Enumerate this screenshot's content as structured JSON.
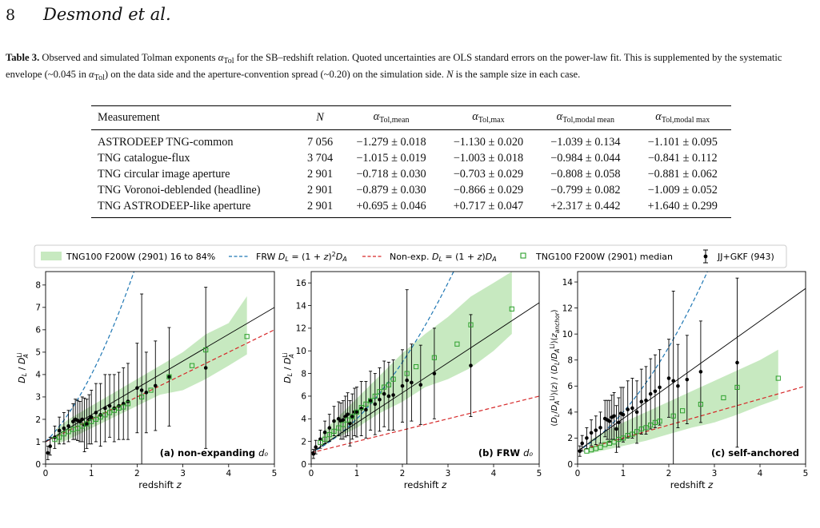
{
  "header": {
    "page_number": "8",
    "authors": "Desmond et al."
  },
  "caption": {
    "label": "Table 3.",
    "text_1": " Observed and simulated Tolman exponents ",
    "alpha_sym": "α",
    "alpha_sub": "Tol",
    "text_2": " for the SB–redshift relation. Quoted uncertainties are OLS standard errors on the power-law fit. This is supplemented by the systematic envelope (~0.045 in ",
    "text_3": ") on the data side and the aperture-convention spread (~0.20) on the simulation side. ",
    "n_sym": "N",
    "text_4": " is the sample size in each case."
  },
  "table": {
    "headers": {
      "measurement": "Measurement",
      "n": "N",
      "alpha": "α",
      "mean_sub": "Tol,mean",
      "max_sub": "Tol,max",
      "modal_mean_sub": "Tol,modal mean",
      "modal_max_sub": "Tol,modal max"
    },
    "rows": [
      {
        "name": "ASTRODEEP TNG-common",
        "n": "7 056",
        "mean": "−1.279 ± 0.018",
        "max": "−1.130 ± 0.020",
        "modal_mean": "−1.039 ± 0.134",
        "modal_max": "−1.101 ± 0.095"
      },
      {
        "name": "TNG catalogue-flux",
        "n": "3 704",
        "mean": "−1.015 ± 0.019",
        "max": "−1.003 ± 0.018",
        "modal_mean": "−0.984 ± 0.044",
        "modal_max": "−0.841 ± 0.112"
      },
      {
        "name": "TNG circular image aperture",
        "n": "2 901",
        "mean": "−0.718 ± 0.030",
        "max": "−0.703 ± 0.029",
        "modal_mean": "−0.808 ± 0.058",
        "modal_max": "−0.881 ± 0.062"
      },
      {
        "name": "TNG Voronoi-deblended (headline)",
        "n": "2 901",
        "mean": "−0.879 ± 0.030",
        "max": "−0.866 ± 0.029",
        "modal_mean": "−0.799 ± 0.082",
        "modal_max": "−1.009 ± 0.052"
      },
      {
        "name": "TNG ASTRODEEP-like aperture",
        "n": "2 901",
        "mean": "+0.695 ± 0.046",
        "max": "+0.717 ± 0.047",
        "modal_mean": "+2.317 ± 0.442",
        "modal_max": "+1.640 ± 0.299"
      }
    ]
  },
  "figure_legend": {
    "band": "TNG100 F200W (2901) 16 to 84%",
    "frw": "FRW D_L = (1 + z)^2 D_A",
    "nonexp": "Non-exp.  D_L = (1 + z)D_A",
    "median": "TNG100 F200W (2901) median",
    "obs": "JJ+GKF (943)"
  },
  "colors": {
    "band": "#c7e9c0",
    "median": "#2ca02c",
    "frw": "#1f77b4",
    "nonexp": "#d62728",
    "obs": "#000000",
    "fit": "#000000"
  },
  "chart_data": [
    {
      "type": "scatter",
      "panel_label": "(a) non-expanding d₀",
      "xlabel": "redshift z",
      "ylabel": "D_L / D_A^Li",
      "xlim": [
        0,
        5
      ],
      "ylim": [
        0,
        8.6
      ],
      "xticks": [
        0,
        1,
        2,
        3,
        4,
        5
      ],
      "yticks": [
        0,
        1,
        2,
        3,
        4,
        5,
        6,
        7,
        8
      ],
      "band": {
        "x": [
          0.25,
          0.5,
          1.0,
          1.5,
          2.0,
          2.5,
          3.0,
          3.5,
          4.0,
          4.4
        ],
        "lo": [
          0.9,
          1.1,
          1.6,
          2.1,
          2.6,
          3.1,
          3.3,
          3.8,
          4.4,
          4.9
        ],
        "hi": [
          1.6,
          2.0,
          2.6,
          3.2,
          3.8,
          4.4,
          5.0,
          5.8,
          6.3,
          7.5
        ]
      },
      "median": {
        "x": [
          0.2,
          0.3,
          0.4,
          0.5,
          0.6,
          0.7,
          0.8,
          0.9,
          1.0,
          1.1,
          1.2,
          1.3,
          1.4,
          1.5,
          1.6,
          1.7,
          1.8,
          2.1,
          2.3,
          2.7,
          3.2,
          3.5,
          4.4
        ],
        "y": [
          1.1,
          1.2,
          1.35,
          1.45,
          1.55,
          1.6,
          1.7,
          1.8,
          1.9,
          2.0,
          2.1,
          2.2,
          2.3,
          2.4,
          2.5,
          2.55,
          2.7,
          3.0,
          3.3,
          3.9,
          4.4,
          5.1,
          5.7
        ]
      },
      "obs": {
        "x": [
          0.05,
          0.1,
          0.2,
          0.3,
          0.4,
          0.5,
          0.6,
          0.65,
          0.7,
          0.75,
          0.8,
          0.85,
          0.9,
          0.95,
          1.0,
          1.1,
          1.2,
          1.3,
          1.4,
          1.5,
          1.6,
          1.7,
          1.8,
          2.0,
          2.1,
          2.2,
          2.4,
          2.7,
          3.5
        ],
        "y": [
          0.5,
          0.8,
          1.2,
          1.5,
          1.6,
          1.7,
          1.9,
          2.0,
          1.95,
          1.9,
          2.0,
          1.75,
          1.8,
          2.0,
          2.1,
          2.3,
          2.2,
          2.5,
          2.6,
          2.5,
          2.6,
          2.7,
          2.8,
          3.4,
          3.3,
          3.2,
          3.5,
          3.9,
          4.3
        ],
        "err": [
          0.3,
          0.4,
          0.5,
          0.6,
          0.7,
          0.7,
          0.8,
          0.9,
          0.9,
          0.9,
          1.0,
          1.2,
          1.1,
          1.1,
          1.2,
          1.3,
          1.4,
          1.5,
          1.4,
          1.5,
          1.5,
          1.6,
          1.7,
          2.0,
          4.3,
          1.8,
          2.0,
          2.2,
          3.6
        ]
      },
      "fit_slope": 1.2,
      "fit_intercept": 1.0,
      "frw": "(1+z)^2",
      "nonexp": "1+z"
    },
    {
      "type": "scatter",
      "panel_label": "(b) FRW d₀",
      "xlabel": "redshift z",
      "ylabel": "D_L / D_A^Li",
      "xlim": [
        0,
        5
      ],
      "ylim": [
        0,
        17
      ],
      "xticks": [
        0,
        1,
        2,
        3,
        4,
        5
      ],
      "yticks": [
        0,
        2,
        4,
        6,
        8,
        10,
        12,
        14,
        16
      ],
      "band": {
        "x": [
          0.25,
          0.5,
          1.0,
          1.5,
          2.0,
          2.5,
          3.0,
          3.5,
          4.0,
          4.4
        ],
        "lo": [
          1.5,
          2.2,
          3.2,
          4.5,
          5.5,
          6.8,
          7.5,
          8.5,
          10.0,
          11.5
        ],
        "hi": [
          2.8,
          3.8,
          5.8,
          7.8,
          9.8,
          11.5,
          13.0,
          14.8,
          16.0,
          17.0
        ]
      },
      "median": {
        "x": [
          0.2,
          0.3,
          0.4,
          0.5,
          0.6,
          0.7,
          0.8,
          0.9,
          1.0,
          1.1,
          1.2,
          1.3,
          1.4,
          1.5,
          1.6,
          1.7,
          1.8,
          2.1,
          2.3,
          2.7,
          3.2,
          3.5,
          4.4
        ],
        "y": [
          1.9,
          2.2,
          2.6,
          2.9,
          3.2,
          3.5,
          3.9,
          4.2,
          4.6,
          5.0,
          5.3,
          5.6,
          6.0,
          6.4,
          6.8,
          7.0,
          7.5,
          8.0,
          8.6,
          9.4,
          10.6,
          12.3,
          13.7
        ]
      },
      "obs": {
        "x": [
          0.05,
          0.1,
          0.2,
          0.3,
          0.4,
          0.5,
          0.6,
          0.65,
          0.7,
          0.75,
          0.8,
          0.85,
          0.9,
          0.95,
          1.0,
          1.1,
          1.2,
          1.3,
          1.4,
          1.5,
          1.6,
          1.7,
          1.8,
          2.0,
          2.1,
          2.2,
          2.4,
          2.7,
          3.5
        ],
        "y": [
          0.9,
          1.5,
          2.2,
          2.8,
          3.2,
          3.8,
          4.0,
          3.8,
          3.9,
          4.2,
          4.4,
          3.6,
          4.2,
          4.6,
          4.6,
          4.9,
          4.8,
          5.6,
          5.3,
          5.7,
          6.2,
          6.0,
          6.1,
          6.9,
          7.4,
          7.2,
          7.0,
          8.0,
          8.7
        ],
        "err": [
          0.4,
          0.6,
          0.8,
          1.0,
          1.2,
          1.3,
          1.5,
          1.6,
          1.7,
          1.8,
          1.9,
          2.0,
          2.0,
          2.1,
          2.2,
          2.4,
          2.5,
          2.6,
          2.7,
          2.8,
          2.9,
          3.0,
          3.1,
          3.2,
          8.0,
          3.4,
          3.5,
          4.0,
          4.5
        ]
      },
      "fit_slope": 2.65,
      "fit_intercept": 1.0,
      "frw": "(1+z)^2",
      "nonexp": "1+z"
    },
    {
      "type": "scatter",
      "panel_label": "(c) self-anchored",
      "xlabel": "redshift z",
      "ylabel": "(D_L/D_A^Li)(z) / (D_L/D_A^Li)(z_anchor)",
      "xlim": [
        0,
        5
      ],
      "ylim": [
        0,
        14.8
      ],
      "xticks": [
        0,
        1,
        2,
        3,
        4,
        5
      ],
      "yticks": [
        0,
        2,
        4,
        6,
        8,
        10,
        12,
        14
      ],
      "band": {
        "x": [
          0.25,
          0.5,
          1.0,
          1.5,
          2.0,
          2.5,
          3.0,
          3.5,
          4.0,
          4.4
        ],
        "lo": [
          0.8,
          1.0,
          1.4,
          1.8,
          2.3,
          2.8,
          3.2,
          3.8,
          4.5,
          5.0
        ],
        "hi": [
          1.8,
          2.3,
          3.2,
          4.0,
          4.8,
          5.6,
          6.4,
          7.2,
          8.0,
          8.8
        ]
      },
      "median": {
        "x": [
          0.2,
          0.3,
          0.4,
          0.5,
          0.6,
          0.7,
          0.8,
          0.9,
          1.0,
          1.1,
          1.2,
          1.3,
          1.4,
          1.5,
          1.6,
          1.7,
          1.8,
          2.1,
          2.3,
          2.7,
          3.2,
          3.5,
          4.4
        ],
        "y": [
          1.0,
          1.1,
          1.2,
          1.3,
          1.5,
          1.6,
          1.7,
          1.9,
          2.0,
          2.2,
          2.3,
          2.5,
          2.7,
          2.8,
          3.0,
          3.2,
          3.3,
          3.7,
          4.1,
          4.6,
          5.1,
          5.9,
          6.6
        ]
      },
      "obs": {
        "x": [
          0.05,
          0.1,
          0.2,
          0.3,
          0.4,
          0.5,
          0.6,
          0.65,
          0.7,
          0.75,
          0.8,
          0.85,
          0.9,
          0.95,
          1.0,
          1.1,
          1.2,
          1.3,
          1.4,
          1.5,
          1.6,
          1.7,
          1.8,
          2.0,
          2.1,
          2.2,
          2.4,
          2.7,
          3.5
        ],
        "y": [
          1.0,
          1.6,
          2.0,
          2.4,
          2.6,
          2.8,
          3.5,
          3.4,
          3.3,
          3.6,
          3.7,
          2.7,
          3.2,
          3.9,
          3.8,
          4.2,
          4.3,
          4.0,
          4.8,
          4.9,
          5.4,
          5.6,
          5.9,
          6.6,
          6.4,
          6.0,
          6.5,
          7.1,
          7.8
        ],
        "err": [
          0.4,
          0.6,
          0.8,
          1.0,
          1.1,
          1.2,
          1.4,
          1.5,
          1.6,
          1.7,
          1.8,
          1.8,
          1.9,
          2.0,
          2.1,
          2.2,
          2.3,
          2.4,
          2.5,
          2.6,
          2.7,
          2.8,
          2.9,
          3.0,
          6.9,
          3.2,
          3.4,
          3.9,
          6.5
        ]
      },
      "fit_slope": 2.5,
      "fit_intercept": 1.0,
      "frw": "(1+z)^2",
      "nonexp": "1+z"
    }
  ]
}
